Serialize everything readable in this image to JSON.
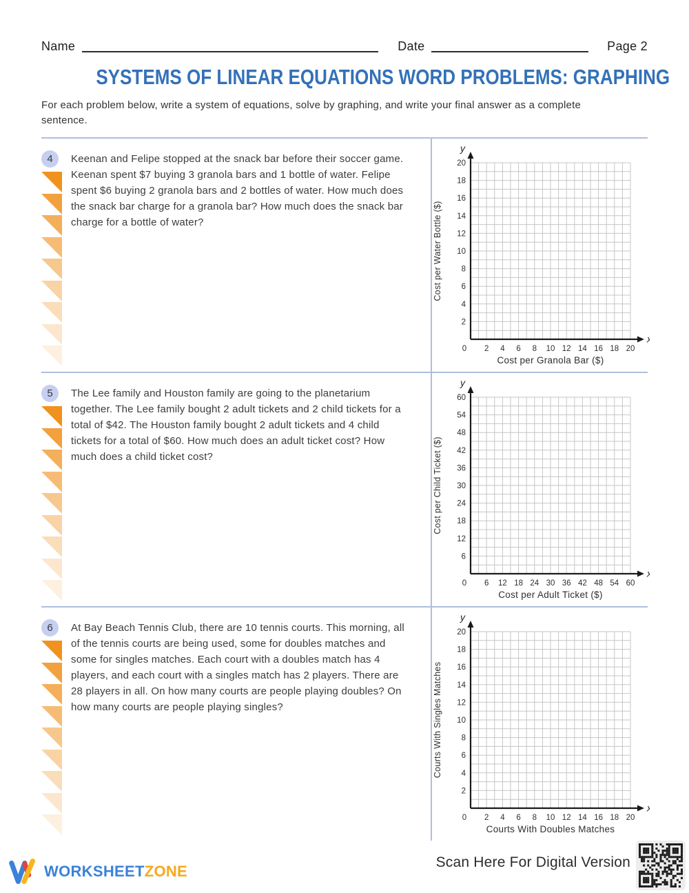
{
  "header": {
    "name_label": "Name",
    "date_label": "Date",
    "page_label": "Page 2"
  },
  "title": "SYSTEMS OF LINEAR EQUATIONS WORD PROBLEMS: GRAPHING",
  "instructions": "For each problem below, write a system of equations, solve by graphing, and write your final answer as a complete sentence.",
  "problems": [
    {
      "number": "4",
      "text": "Keenan and Felipe stopped at the snack bar before their soccer game. Keenan spent $7 buying 3 granola bars and 1 bottle of water. Felipe spent $6 buying 2 granola bars and 2 bottles of water. How much does the snack bar charge for a granola bar? How much does the snack bar charge for a bottle of water?"
    },
    {
      "number": "5",
      "text": "The Lee family and Houston family are going to the planetarium together. The Lee family bought 2 adult tickets and 2 child tickets for a total of $42. The Houston family bought 2 adult tickets and 4 child tickets for a total of $60. How much does an adult ticket cost? How much does a child ticket cost?"
    },
    {
      "number": "6",
      "text": "At Bay Beach Tennis Club, there are 10 tennis courts. This morning, all of the tennis courts are being used, some for doubles matches and some for singles matches. Each court with a doubles match has 4 players, and each court with a singles match has 2 players. There are 28 players in all. On how many courts are people playing doubles? On how many courts are people playing singles?"
    }
  ],
  "chart_data": [
    {
      "type": "grid",
      "title": "",
      "xlabel": "Cost per Granola Bar ($)",
      "ylabel": "Cost per Water Bottle ($)",
      "x_axis_letter": "x",
      "y_axis_letter": "y",
      "xlim": [
        0,
        20
      ],
      "ylim": [
        0,
        20
      ],
      "x_tick_labels": [
        0,
        2,
        4,
        6,
        8,
        10,
        12,
        14,
        16,
        18,
        20
      ],
      "y_tick_labels": [
        2,
        4,
        6,
        8,
        10,
        12,
        14,
        16,
        18,
        20
      ],
      "grid_divisions": 20,
      "series": []
    },
    {
      "type": "grid",
      "title": "",
      "xlabel": "Cost per Adult Ticket ($)",
      "ylabel": "Cost per Child Ticket ($)",
      "x_axis_letter": "x",
      "y_axis_letter": "y",
      "xlim": [
        0,
        60
      ],
      "ylim": [
        0,
        60
      ],
      "x_tick_labels": [
        0,
        6,
        12,
        18,
        24,
        30,
        36,
        42,
        48,
        54,
        60
      ],
      "y_tick_labels": [
        6,
        12,
        18,
        24,
        30,
        36,
        42,
        48,
        54,
        60
      ],
      "grid_divisions": 20,
      "series": []
    },
    {
      "type": "grid",
      "title": "",
      "xlabel": "Courts With Doubles Matches",
      "ylabel": "Courts With Singles Matches",
      "x_axis_letter": "x",
      "y_axis_letter": "y",
      "xlim": [
        0,
        20
      ],
      "ylim": [
        0,
        20
      ],
      "x_tick_labels": [
        0,
        2,
        4,
        6,
        8,
        10,
        12,
        14,
        16,
        18,
        20
      ],
      "y_tick_labels": [
        2,
        4,
        6,
        8,
        10,
        12,
        14,
        16,
        18,
        20
      ],
      "grid_divisions": 20,
      "series": []
    }
  ],
  "footer": {
    "brand_first": "WORKSHEET",
    "brand_second": "ZONE",
    "scan_text": "Scan Here For Digital Version"
  },
  "colors": {
    "title_blue": "#3371b8",
    "divider": "#afbddd",
    "badge_bg": "#c6cfef",
    "triangle_orange": "#f0921e",
    "grid_line": "#c6c6c6",
    "axis_black": "#1a1a1a",
    "brand_blue": "#3b82d8",
    "brand_yellow": "#f6a81c",
    "brand_red": "#e2453c"
  }
}
